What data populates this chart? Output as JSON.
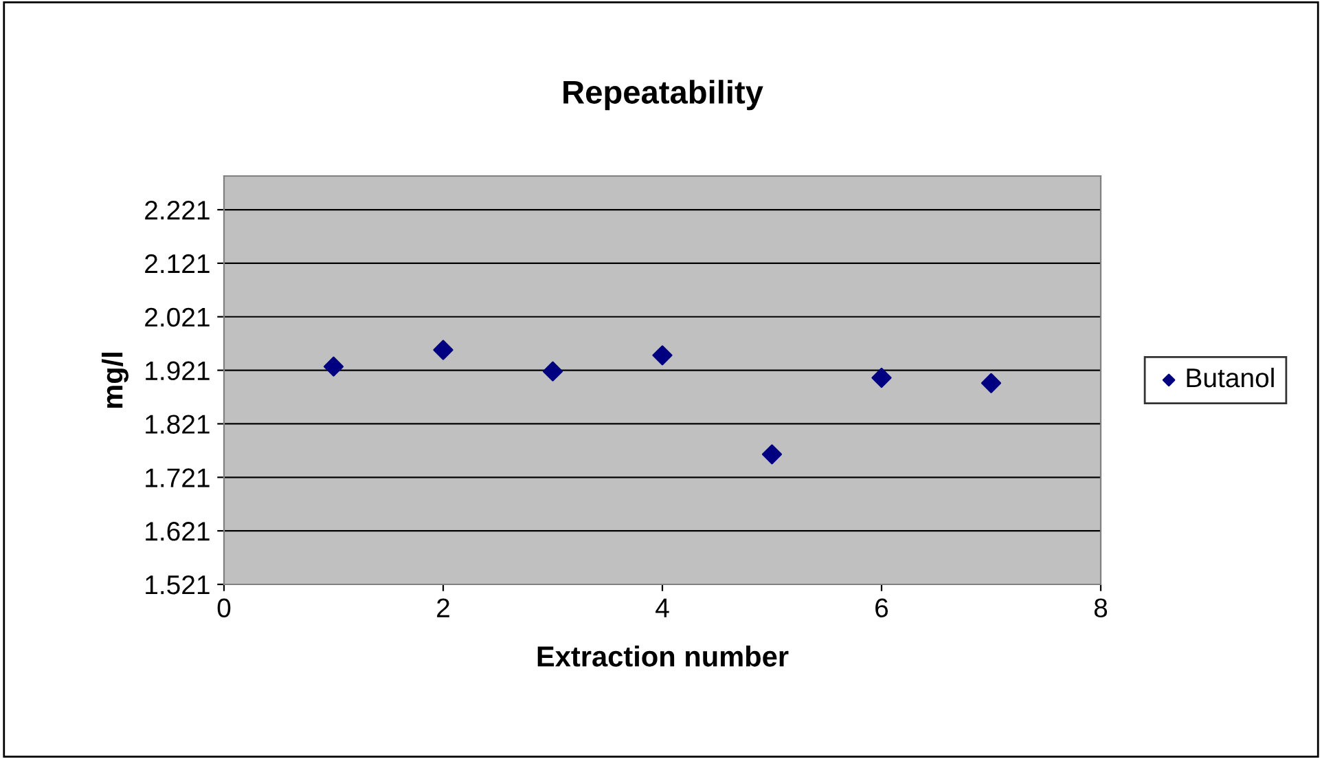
{
  "chart_data": {
    "type": "scatter",
    "title": "Repeatability",
    "xlabel": "Extraction number",
    "ylabel": "mg/l",
    "x": [
      1,
      2,
      3,
      4,
      5,
      6,
      7
    ],
    "series": [
      {
        "name": "Butanol",
        "color": "#000080",
        "values": [
          1.928,
          1.959,
          1.919,
          1.949,
          1.764,
          1.907,
          1.897
        ]
      }
    ],
    "xlim": [
      0,
      8
    ],
    "xticks": [
      0,
      2,
      4,
      6,
      8
    ],
    "ylim": [
      1.521,
      2.284
    ],
    "yticks": [
      {
        "value": 1.521,
        "label": "1.521"
      },
      {
        "value": 1.621,
        "label": "1.621"
      },
      {
        "value": 1.721,
        "label": "1.721"
      },
      {
        "value": 1.821,
        "label": "1.821"
      },
      {
        "value": 1.921,
        "label": "1.921"
      },
      {
        "value": 2.021,
        "label": "2.021"
      },
      {
        "value": 2.121,
        "label": "2.121"
      },
      {
        "value": 2.221,
        "label": "2.221"
      }
    ],
    "grid": "y",
    "legend": "right",
    "marker": "diamond"
  }
}
